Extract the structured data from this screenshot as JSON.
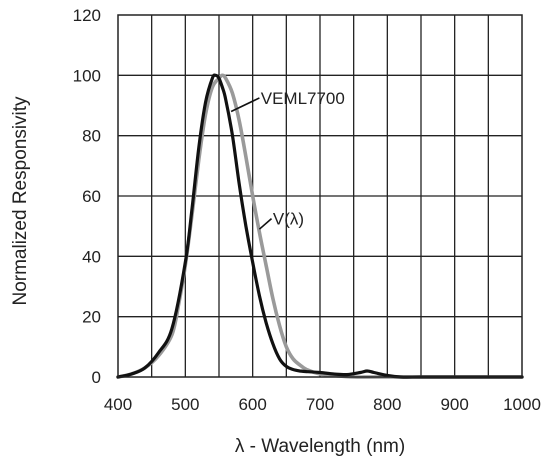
{
  "chart_data": {
    "type": "line",
    "xlabel": "λ - Wavelength (nm)",
    "ylabel": "Normalized Responsivity",
    "xlim": [
      400,
      1000
    ],
    "ylim": [
      0,
      120
    ],
    "xticks": [
      400,
      500,
      600,
      700,
      800,
      900,
      1000
    ],
    "yticks": [
      0,
      20,
      40,
      60,
      80,
      100,
      120
    ],
    "grid": true,
    "minor_x_step": 50,
    "series": [
      {
        "name": "VEML7700",
        "color": "#111111",
        "x": [
          400,
          420,
          440,
          460,
          480,
          500,
          510,
          520,
          530,
          540,
          545,
          550,
          555,
          560,
          570,
          580,
          590,
          600,
          610,
          620,
          630,
          640,
          650,
          660,
          670,
          680,
          700,
          720,
          740,
          760,
          770,
          780,
          800,
          820,
          850,
          900,
          1000
        ],
        "y": [
          0,
          1,
          3,
          8,
          16,
          38,
          56,
          76,
          91,
          99,
          100,
          99,
          96,
          92,
          80,
          64,
          50,
          38,
          27,
          18,
          11,
          6,
          3.5,
          2.5,
          2,
          1.8,
          1.5,
          1,
          0.8,
          1.5,
          2,
          1.5,
          0.5,
          0,
          0,
          0,
          0
        ]
      },
      {
        "name": "V(λ)",
        "color": "#9a9a9a",
        "x": [
          400,
          420,
          440,
          460,
          480,
          490,
          500,
          510,
          520,
          530,
          540,
          550,
          555,
          560,
          570,
          580,
          590,
          600,
          610,
          620,
          630,
          640,
          650,
          660,
          670,
          680,
          700,
          720,
          750,
          800,
          1000
        ],
        "y": [
          0,
          1,
          3,
          7,
          14,
          24,
          37,
          54,
          72,
          87,
          96,
          99,
          100,
          99,
          94,
          85,
          73,
          60,
          48,
          37,
          26,
          17,
          10,
          6,
          4,
          2.5,
          1,
          0.5,
          0,
          0,
          0
        ]
      }
    ],
    "annotations": [
      {
        "text": "VEML7700",
        "series": "VEML7700"
      },
      {
        "text": "V(λ)",
        "series": "V(λ)"
      }
    ]
  }
}
